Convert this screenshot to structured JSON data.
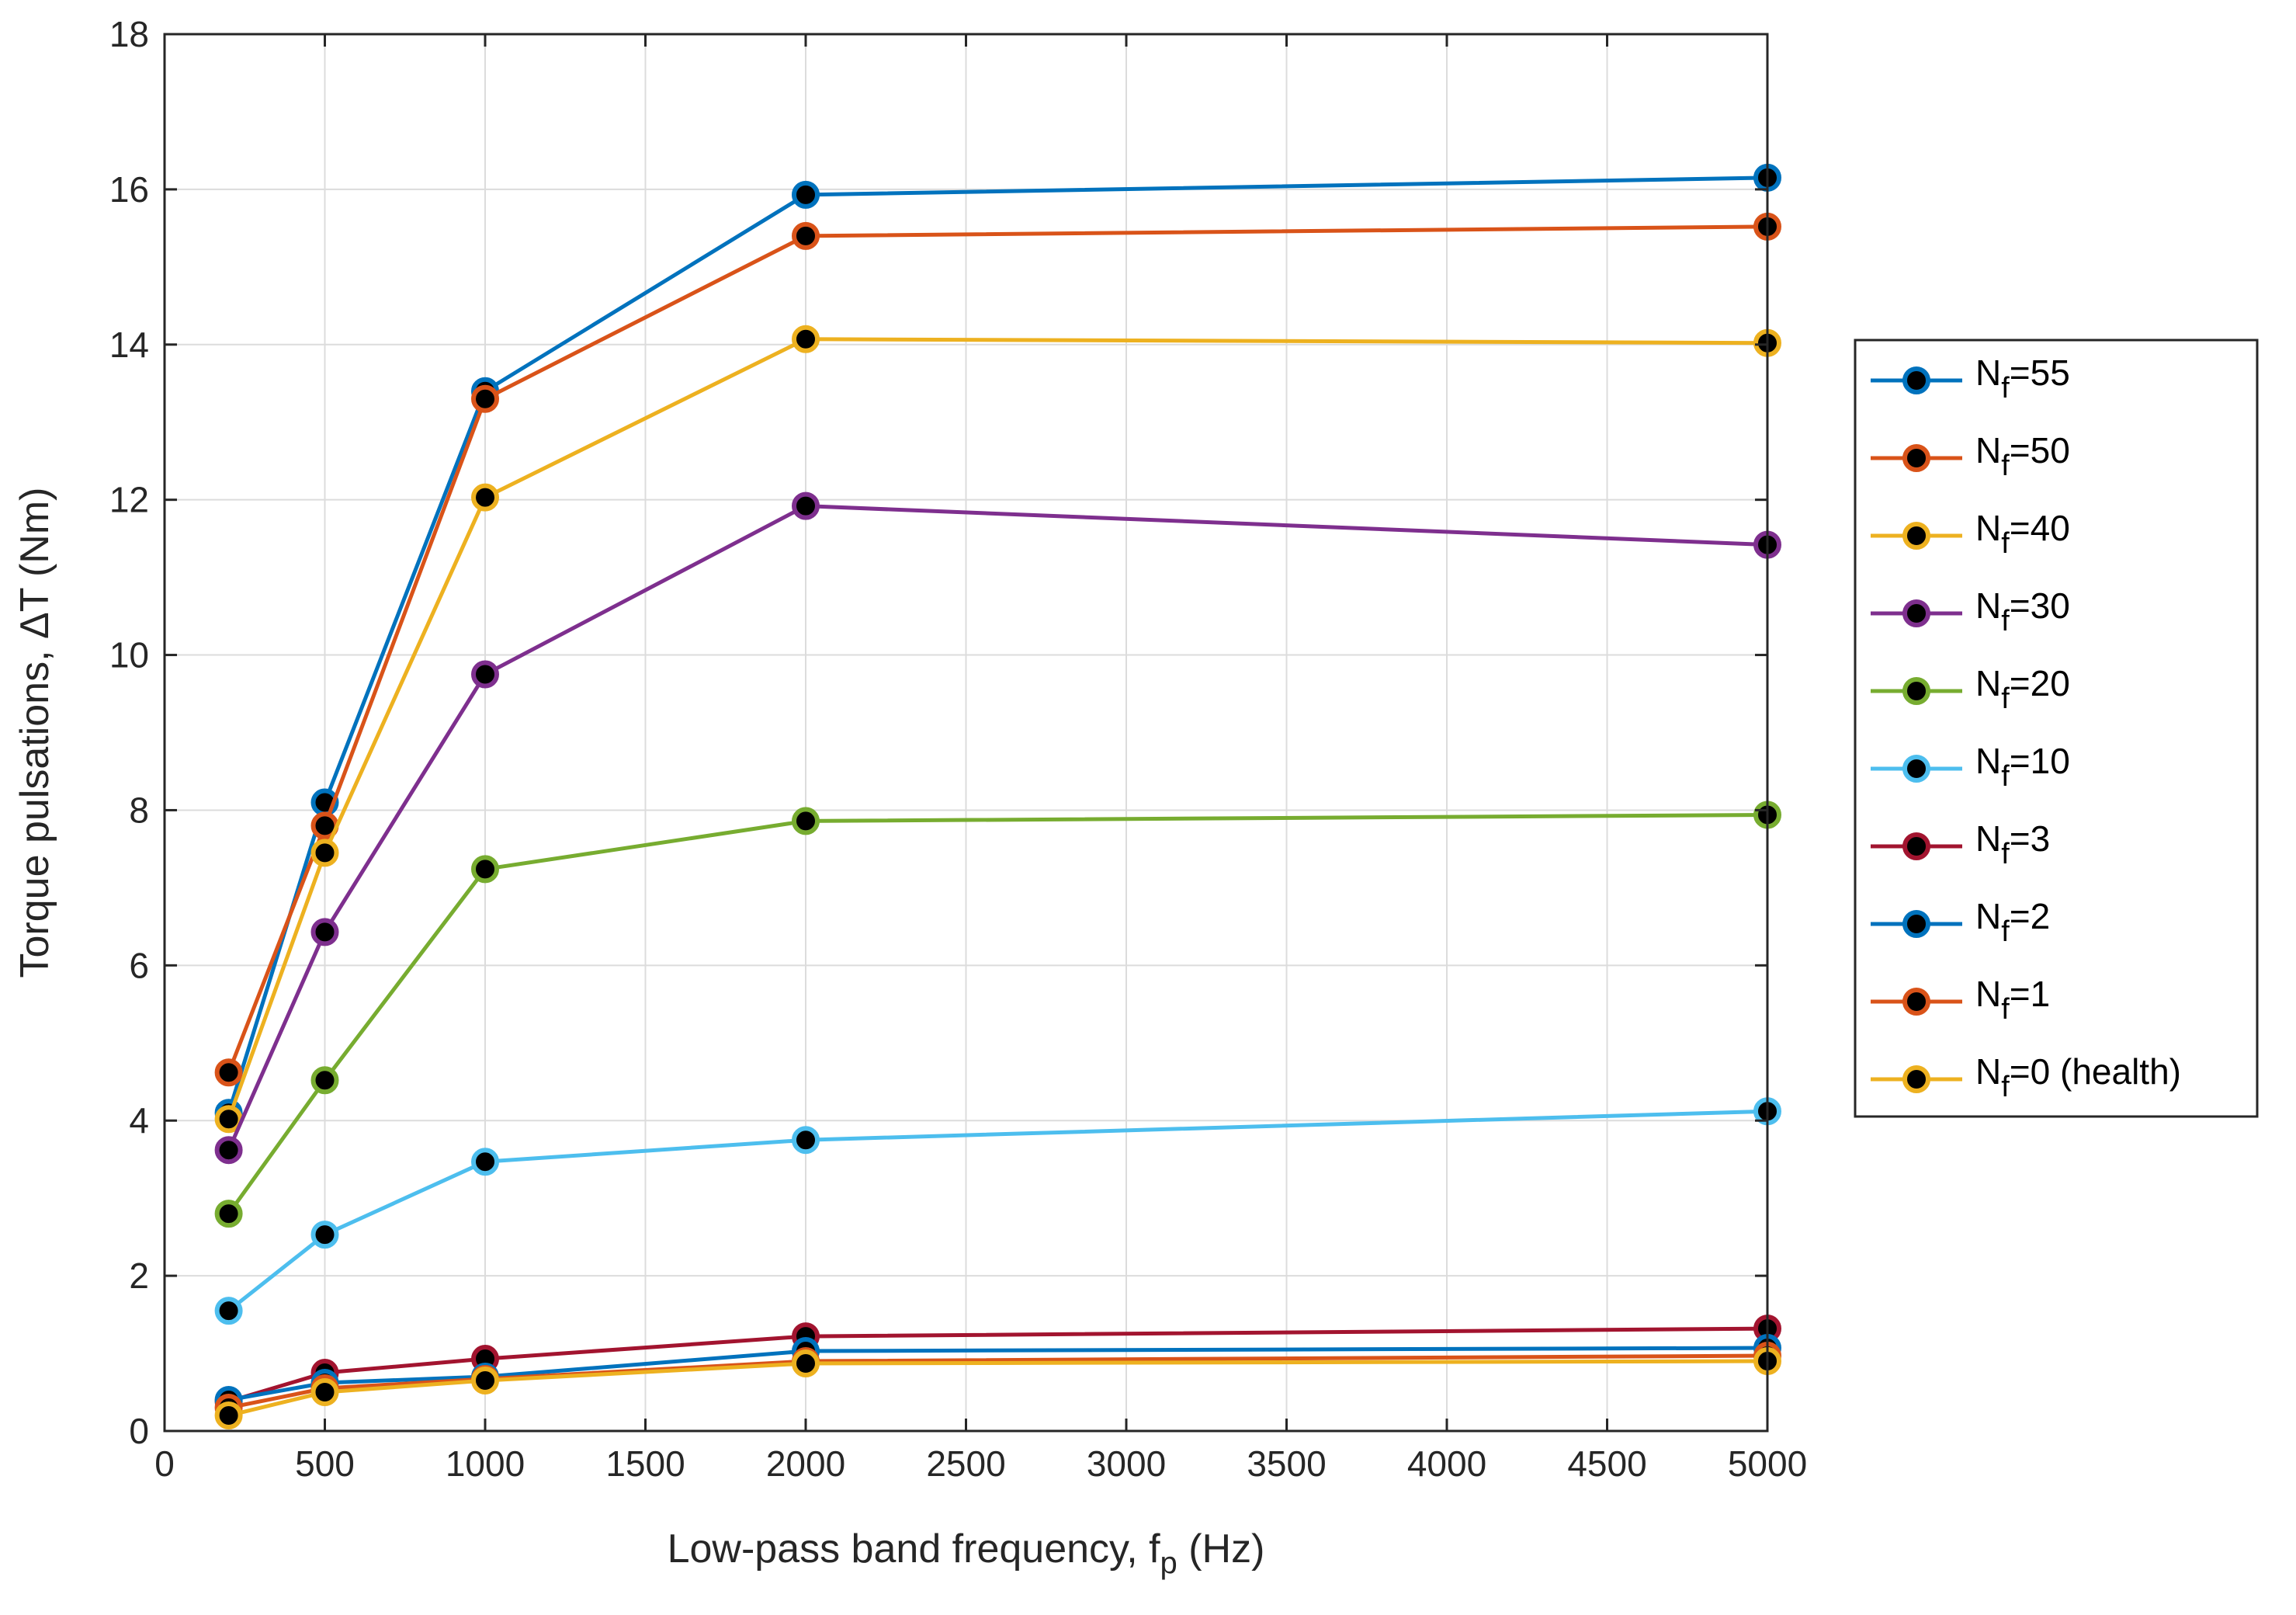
{
  "chart_data": {
    "type": "line",
    "xlabel_main": "Low-pass band frequency, f",
    "xlabel_sub": "p",
    "xlabel_unit": " (Hz)",
    "ylabel": "Torque pulsations,  ΔT (Nm)",
    "xlim": [
      0,
      5000
    ],
    "ylim": [
      0,
      18
    ],
    "xticks": [
      "0",
      "500",
      "1000",
      "1500",
      "2000",
      "2500",
      "3000",
      "3500",
      "4000",
      "4500",
      "5000"
    ],
    "yticks": [
      "0",
      "2",
      "4",
      "6",
      "8",
      "10",
      "12",
      "14",
      "16",
      "18"
    ],
    "grid": true,
    "legend_position": "right-outside",
    "marker_fill": "#000000",
    "x": [
      200,
      500,
      1000,
      2000,
      5000
    ],
    "series": [
      {
        "name_main": "N",
        "name_sub": "f",
        "name_rest": "=55",
        "color": "#0072BD",
        "values": [
          4.1,
          8.1,
          13.4,
          15.93,
          16.15
        ]
      },
      {
        "name_main": "N",
        "name_sub": "f",
        "name_rest": "=50",
        "color": "#D95319",
        "values": [
          4.62,
          7.8,
          13.3,
          15.4,
          15.52
        ]
      },
      {
        "name_main": "N",
        "name_sub": "f",
        "name_rest": "=40",
        "color": "#EDB120",
        "values": [
          4.02,
          7.45,
          12.03,
          14.07,
          14.02
        ]
      },
      {
        "name_main": "N",
        "name_sub": "f",
        "name_rest": "=30",
        "color": "#7E2F8E",
        "values": [
          3.62,
          6.43,
          9.75,
          11.92,
          11.42
        ]
      },
      {
        "name_main": "N",
        "name_sub": "f",
        "name_rest": "=20",
        "color": "#77AC30",
        "values": [
          2.8,
          4.52,
          7.24,
          7.86,
          7.94
        ]
      },
      {
        "name_main": "N",
        "name_sub": "f",
        "name_rest": "=10",
        "color": "#4DBEEE",
        "values": [
          1.55,
          2.53,
          3.47,
          3.75,
          4.12
        ]
      },
      {
        "name_main": "N",
        "name_sub": "f",
        "name_rest": "=3",
        "color": "#A2142F",
        "values": [
          0.38,
          0.75,
          0.93,
          1.22,
          1.32
        ]
      },
      {
        "name_main": "N",
        "name_sub": "f",
        "name_rest": "=2",
        "color": "#0072BD",
        "values": [
          0.4,
          0.62,
          0.7,
          1.03,
          1.07
        ]
      },
      {
        "name_main": "N",
        "name_sub": "f",
        "name_rest": "=1",
        "color": "#D95319",
        "values": [
          0.3,
          0.55,
          0.67,
          0.9,
          0.97
        ]
      },
      {
        "name_main": "N",
        "name_sub": "f",
        "name_rest": "=0 (health)",
        "color": "#EDB120",
        "values": [
          0.2,
          0.5,
          0.65,
          0.87,
          0.9
        ]
      }
    ]
  }
}
